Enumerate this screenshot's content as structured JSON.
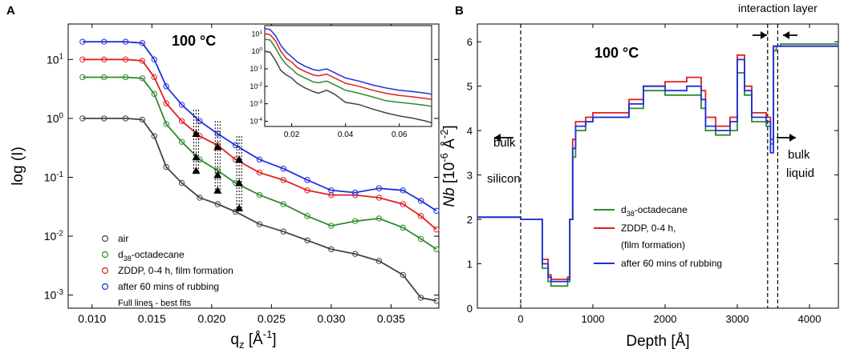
{
  "panels": {
    "a": {
      "label": "A",
      "temp_label": "100 °C",
      "legend_note": "Full lines - best fits"
    },
    "b": {
      "label": "B",
      "temp_label": "100 °C",
      "annotations": {
        "interaction_layer": "interaction layer",
        "bulk_silicon": [
          "bulk",
          "silicon"
        ],
        "bulk_liquid": [
          "bulk",
          "liquid"
        ]
      }
    }
  },
  "colors": {
    "air": "#444444",
    "d38": "#2e8b2e",
    "zddp": "#e02020",
    "rubbed": "#2030e0"
  },
  "chart_data": [
    {
      "id": "A",
      "type": "scatter",
      "title": "",
      "xlabel": "q",
      "xlabel_sub": "z",
      "xlabel_unit_pre": " [Å",
      "xlabel_unit_exp": "-1",
      "xlabel_unit_post": "]",
      "ylabel": "log (I)",
      "yscale": "log",
      "xlim": [
        0.008,
        0.039
      ],
      "ylim": [
        0.0006,
        40
      ],
      "xticks": [
        0.01,
        0.015,
        0.02,
        0.025,
        0.03,
        0.035
      ],
      "xtick_labels": [
        "0.010",
        "0.015",
        "0.020",
        "0.025",
        "0.030",
        "0.035"
      ],
      "yticks": [
        0.001,
        0.01,
        0.1,
        1,
        10
      ],
      "ytick_bases": [
        "10",
        "10",
        "10",
        "10",
        "10"
      ],
      "ytick_exps": [
        "-3",
        "-2",
        "-1",
        "0",
        "1"
      ],
      "legend_position": "bottom-left",
      "series": [
        {
          "name": "air",
          "key": "air",
          "x": [
            0.0092,
            0.011,
            0.0128,
            0.0142,
            0.0152,
            0.0162,
            0.0175,
            0.019,
            0.0205,
            0.022,
            0.024,
            0.026,
            0.028,
            0.03,
            0.032,
            0.034,
            0.036,
            0.0375,
            0.0388
          ],
          "y": [
            1.0,
            1.0,
            1.0,
            0.95,
            0.5,
            0.15,
            0.08,
            0.045,
            0.035,
            0.026,
            0.016,
            0.012,
            0.0085,
            0.006,
            0.005,
            0.0038,
            0.0022,
            0.0009,
            0.0008
          ]
        },
        {
          "name": "d-octadecane",
          "name_prefix": "d",
          "name_sub": "38",
          "name_suffix": "-octadecane",
          "key": "d38",
          "x": [
            0.0092,
            0.011,
            0.0128,
            0.0142,
            0.0152,
            0.0162,
            0.0175,
            0.019,
            0.0205,
            0.022,
            0.024,
            0.026,
            0.028,
            0.03,
            0.032,
            0.034,
            0.036,
            0.0375,
            0.0388
          ],
          "y": [
            5.0,
            5.0,
            5.0,
            4.8,
            2.6,
            0.8,
            0.4,
            0.2,
            0.13,
            0.08,
            0.05,
            0.035,
            0.022,
            0.015,
            0.018,
            0.02,
            0.014,
            0.009,
            0.006
          ]
        },
        {
          "name": "ZDDP, 0-4 h, film formation",
          "key": "zddp",
          "x": [
            0.0092,
            0.011,
            0.0128,
            0.0142,
            0.0152,
            0.0162,
            0.0175,
            0.019,
            0.0205,
            0.022,
            0.024,
            0.026,
            0.028,
            0.03,
            0.032,
            0.034,
            0.036,
            0.0375,
            0.0388
          ],
          "y": [
            10.0,
            10.0,
            10.0,
            9.5,
            5.0,
            1.8,
            0.9,
            0.5,
            0.35,
            0.2,
            0.12,
            0.09,
            0.06,
            0.05,
            0.05,
            0.045,
            0.035,
            0.022,
            0.013
          ]
        },
        {
          "name": "after 60 mins of rubbing",
          "key": "rubbed",
          "x": [
            0.0092,
            0.011,
            0.0128,
            0.0142,
            0.0152,
            0.0162,
            0.0175,
            0.019,
            0.0205,
            0.022,
            0.024,
            0.026,
            0.028,
            0.03,
            0.032,
            0.034,
            0.036,
            0.0375,
            0.0388
          ],
          "y": [
            20.0,
            20.0,
            20.0,
            19.0,
            10.0,
            3.5,
            1.7,
            0.9,
            0.55,
            0.35,
            0.2,
            0.14,
            0.09,
            0.06,
            0.055,
            0.065,
            0.06,
            0.04,
            0.027
          ]
        }
      ],
      "fringe_markers": [
        {
          "x": 0.0187,
          "y": 0.55
        },
        {
          "x": 0.0187,
          "y": 0.22
        },
        {
          "x": 0.0187,
          "y": 0.13
        },
        {
          "x": 0.0205,
          "y": 0.33
        },
        {
          "x": 0.0205,
          "y": 0.11
        },
        {
          "x": 0.0205,
          "y": 0.06
        },
        {
          "x": 0.0223,
          "y": 0.2
        },
        {
          "x": 0.0223,
          "y": 0.08
        },
        {
          "x": 0.0223,
          "y": 0.03
        }
      ],
      "marker_guides": [
        {
          "x": 0.0187,
          "y_top": 1.4,
          "y_bottom": 0.12
        },
        {
          "x": 0.0205,
          "y_top": 0.9,
          "y_bottom": 0.055
        },
        {
          "x": 0.0223,
          "y_top": 0.5,
          "y_bottom": 0.027
        }
      ],
      "inset": {
        "type": "line",
        "yscale": "log",
        "xlim": [
          0.01,
          0.072
        ],
        "ylim": [
          5e-05,
          30
        ],
        "xticks": [
          0.02,
          0.04,
          0.06
        ],
        "xtick_labels": [
          "0.02",
          "0.04",
          "0.06"
        ],
        "yticks": [
          0.0001,
          0.001,
          0.01,
          0.1,
          1,
          10
        ],
        "ytick_bases": [
          "10",
          "10",
          "10",
          "10",
          "10",
          "10"
        ],
        "ytick_exps": [
          "-4",
          "-3",
          "-2",
          "-1",
          "0",
          "1"
        ],
        "series": [
          {
            "key": "air",
            "x": [
              0.01,
              0.012,
              0.014,
              0.016,
              0.018,
              0.02,
              0.022,
              0.025,
              0.028,
              0.03,
              0.033,
              0.036,
              0.04,
              0.045,
              0.05,
              0.055,
              0.06,
              0.065,
              0.07,
              0.072
            ],
            "y": [
              1.0,
              0.9,
              0.3,
              0.08,
              0.045,
              0.03,
              0.015,
              0.008,
              0.005,
              0.004,
              0.006,
              0.0035,
              0.0012,
              0.0009,
              0.0005,
              0.0003,
              0.0002,
              0.00015,
              0.0001,
              8e-05
            ]
          },
          {
            "key": "d38",
            "x": [
              0.01,
              0.012,
              0.014,
              0.016,
              0.018,
              0.02,
              0.022,
              0.025,
              0.028,
              0.03,
              0.033,
              0.036,
              0.04,
              0.045,
              0.05,
              0.055,
              0.06,
              0.065,
              0.07,
              0.072
            ],
            "y": [
              5.0,
              4.5,
              1.6,
              0.45,
              0.18,
              0.1,
              0.05,
              0.03,
              0.018,
              0.016,
              0.02,
              0.012,
              0.006,
              0.004,
              0.0025,
              0.0015,
              0.0012,
              0.001,
              0.0008,
              0.0007
            ]
          },
          {
            "key": "zddp",
            "x": [
              0.01,
              0.012,
              0.014,
              0.016,
              0.018,
              0.02,
              0.022,
              0.025,
              0.028,
              0.03,
              0.033,
              0.036,
              0.04,
              0.045,
              0.05,
              0.055,
              0.06,
              0.065,
              0.07,
              0.072
            ],
            "y": [
              10.0,
              9.0,
              4.0,
              1.0,
              0.4,
              0.25,
              0.12,
              0.07,
              0.045,
              0.04,
              0.05,
              0.03,
              0.015,
              0.01,
              0.006,
              0.004,
              0.003,
              0.0025,
              0.002,
              0.0018
            ]
          },
          {
            "key": "rubbed",
            "x": [
              0.01,
              0.012,
              0.014,
              0.016,
              0.018,
              0.02,
              0.022,
              0.025,
              0.028,
              0.03,
              0.033,
              0.036,
              0.04,
              0.045,
              0.05,
              0.055,
              0.06,
              0.065,
              0.07,
              0.072
            ],
            "y": [
              20.0,
              18.0,
              8.0,
              2.2,
              0.9,
              0.5,
              0.25,
              0.14,
              0.09,
              0.08,
              0.1,
              0.06,
              0.03,
              0.02,
              0.012,
              0.008,
              0.006,
              0.005,
              0.004,
              0.0035
            ]
          }
        ]
      }
    },
    {
      "id": "B",
      "type": "line",
      "title": "",
      "xlabel": "Depth [Å]",
      "ylabel": "Nb",
      "ylabel_unit_pre": " [10",
      "ylabel_unit_exp": "-6",
      "ylabel_unit_post": " Å",
      "ylabel_unit_exp2": "-2",
      "ylabel_unit_end": "]",
      "xlim": [
        -600,
        4400
      ],
      "ylim": [
        0,
        6.4
      ],
      "xticks": [
        0,
        1000,
        2000,
        3000,
        4000
      ],
      "yticks": [
        0,
        1,
        2,
        3,
        4,
        5,
        6
      ],
      "legend_position": "bottom-center",
      "series": [
        {
          "name": "d-octadecane",
          "name_prefix": "d",
          "name_sub": "38",
          "name_suffix": "-octadecane",
          "key": "d38",
          "x": [
            -600,
            0,
            0,
            250,
            300,
            380,
            420,
            650,
            680,
            720,
            760,
            900,
            1000,
            1500,
            1700,
            2000,
            2300,
            2500,
            2560,
            2700,
            2900,
            3000,
            3100,
            3200,
            3400,
            3460,
            3500,
            3540,
            3600,
            4400
          ],
          "y": [
            2.05,
            2.05,
            2.0,
            2.0,
            0.9,
            0.6,
            0.5,
            0.6,
            2.0,
            3.4,
            4.0,
            4.2,
            4.3,
            4.5,
            4.9,
            4.8,
            4.8,
            4.5,
            4.0,
            3.9,
            4.0,
            5.3,
            4.8,
            4.2,
            4.1,
            3.7,
            5.8,
            5.9,
            5.95,
            5.95
          ]
        },
        {
          "name": "ZDDP, 0-4 h, (film formation)",
          "name_line1": "ZDDP, 0-4 h,",
          "name_line2": "(film formation)",
          "key": "zddp",
          "x": [
            -600,
            0,
            0,
            250,
            300,
            380,
            420,
            650,
            680,
            720,
            760,
            900,
            1000,
            1500,
            1700,
            2000,
            2300,
            2500,
            2560,
            2700,
            2900,
            3000,
            3100,
            3200,
            3400,
            3460,
            3500,
            3540,
            3600,
            4400
          ],
          "y": [
            2.05,
            2.05,
            2.0,
            2.0,
            1.1,
            0.75,
            0.65,
            0.7,
            2.0,
            3.8,
            4.2,
            4.3,
            4.4,
            4.7,
            5.0,
            5.1,
            5.2,
            4.9,
            4.3,
            4.1,
            4.3,
            5.7,
            5.0,
            4.4,
            4.3,
            3.8,
            5.9,
            5.9,
            5.9,
            5.9
          ]
        },
        {
          "name": "after 60 mins of rubbing",
          "key": "rubbed",
          "x": [
            -600,
            0,
            0,
            250,
            300,
            380,
            420,
            650,
            680,
            720,
            760,
            900,
            1000,
            1500,
            1700,
            2000,
            2300,
            2500,
            2560,
            2700,
            2900,
            3000,
            3100,
            3200,
            3400,
            3460,
            3500,
            3540,
            3600,
            4400
          ],
          "y": [
            2.05,
            2.05,
            2.0,
            2.0,
            1.0,
            0.7,
            0.6,
            0.65,
            2.0,
            3.6,
            4.1,
            4.2,
            4.3,
            4.6,
            5.0,
            4.9,
            5.0,
            4.7,
            4.1,
            4.0,
            4.2,
            5.6,
            4.9,
            4.3,
            4.2,
            3.5,
            5.9,
            5.9,
            5.9,
            5.9
          ]
        }
      ],
      "boundary_lines_x": [
        0,
        3420,
        3560
      ]
    }
  ]
}
